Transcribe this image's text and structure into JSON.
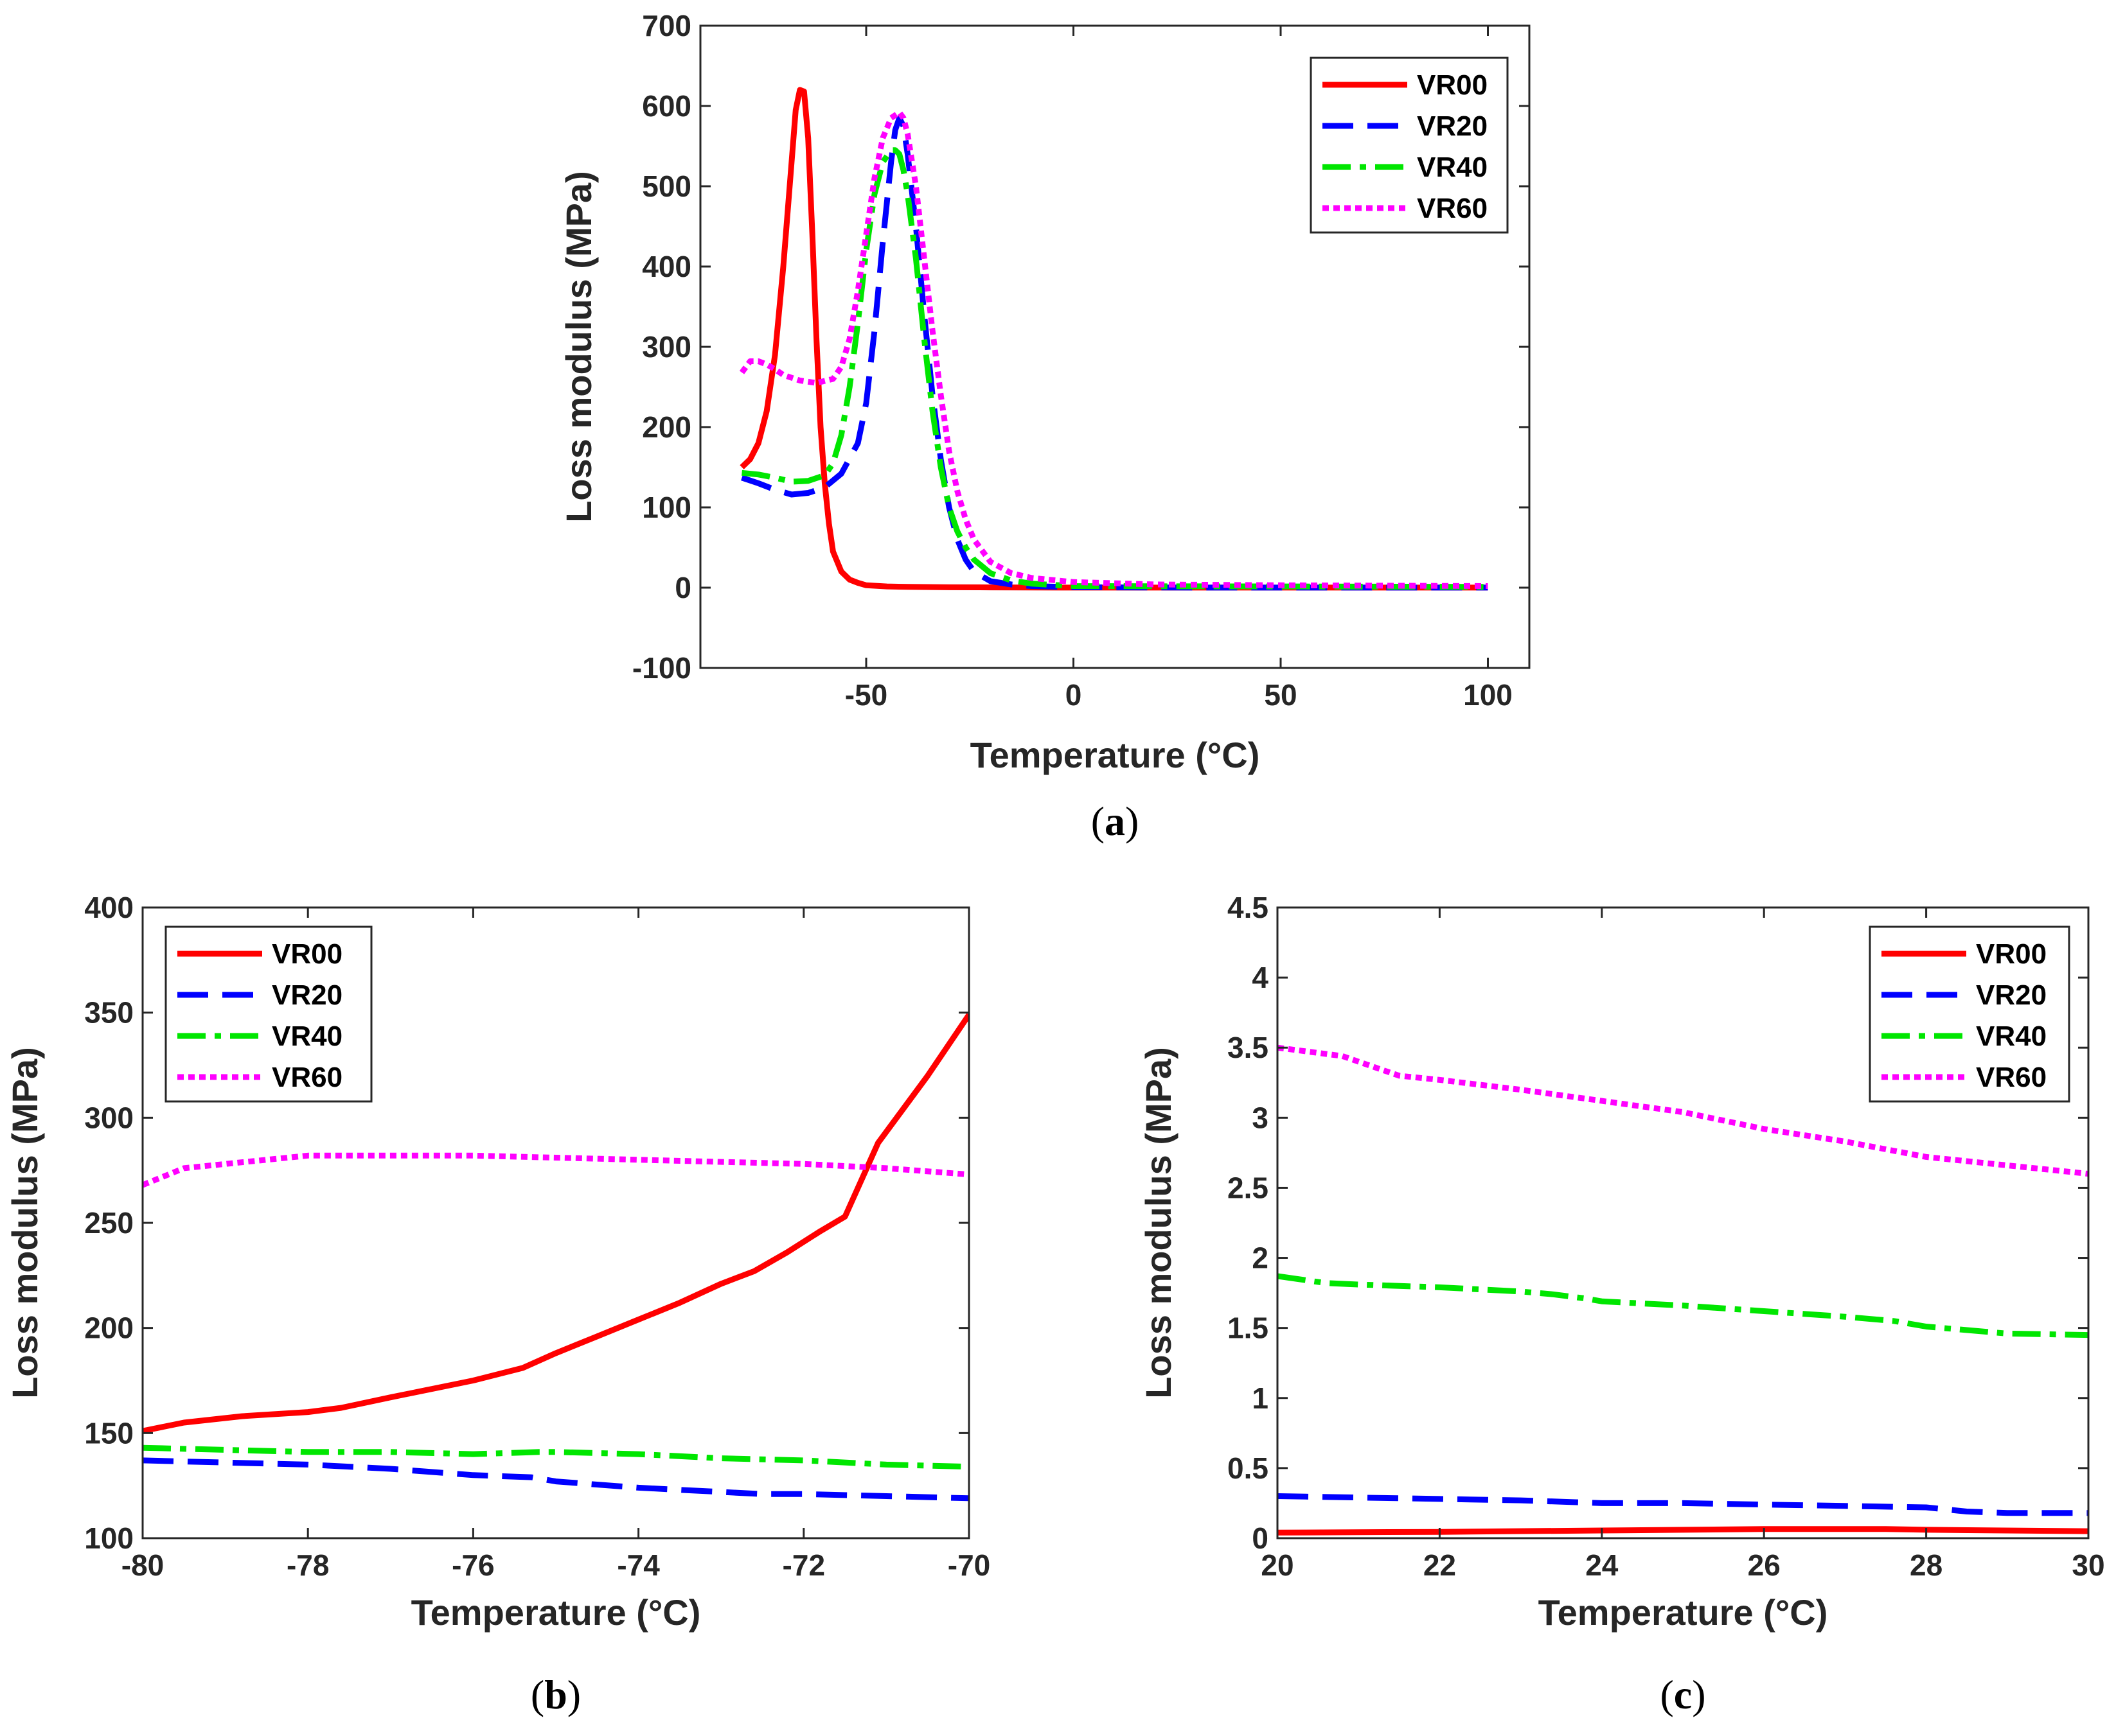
{
  "chart_data": [
    {
      "id": "a",
      "type": "line",
      "caption_letter": "a",
      "xlabel": "Temperature (°C)",
      "ylabel": "Loss modulus (MPa)",
      "xlim": [
        -90,
        110
      ],
      "ylim": [
        -100,
        700
      ],
      "xticks": [
        -50,
        0,
        50,
        100
      ],
      "yticks": [
        -100,
        0,
        100,
        200,
        300,
        400,
        500,
        600,
        700
      ],
      "xtick_labels": [
        "-50",
        "0",
        "50",
        "100"
      ],
      "ytick_labels": [
        "-100",
        "0",
        "100",
        "200",
        "300",
        "400",
        "500",
        "600",
        "700"
      ],
      "legend": "top-right",
      "series": [
        {
          "name": "VR00",
          "color": "#ff0000",
          "style": "solid",
          "x": [
            -80,
            -78,
            -76,
            -74,
            -72,
            -70,
            -68,
            -67,
            -66,
            -65,
            -64,
            -63,
            -62,
            -61,
            -60,
            -59,
            -58,
            -56,
            -54,
            -52,
            -50,
            -45,
            -40,
            -30,
            -20,
            0,
            20,
            50,
            100
          ],
          "y": [
            150,
            160,
            180,
            220,
            290,
            400,
            530,
            595,
            620,
            618,
            560,
            440,
            310,
            200,
            130,
            80,
            45,
            20,
            10,
            6,
            3,
            1.5,
            1,
            0.5,
            0.3,
            0.1,
            0.1,
            0.1,
            0.1
          ]
        },
        {
          "name": "VR20",
          "color": "#0000ff",
          "style": "dashed",
          "x": [
            -80,
            -76,
            -72,
            -68,
            -64,
            -60,
            -56,
            -52,
            -50,
            -48,
            -46,
            -44,
            -43,
            -42,
            -41,
            -40,
            -38,
            -36,
            -34,
            -32,
            -30,
            -28,
            -26,
            -24,
            -20,
            -15,
            -10,
            0,
            20,
            50,
            100
          ],
          "y": [
            137,
            130,
            122,
            116,
            118,
            125,
            142,
            180,
            230,
            320,
            430,
            530,
            570,
            585,
            575,
            540,
            450,
            340,
            240,
            160,
            100,
            60,
            35,
            20,
            8,
            4,
            2,
            0.5,
            0.2,
            0.1,
            0.1
          ]
        },
        {
          "name": "VR40",
          "color": "#00e600",
          "style": "dashdot",
          "x": [
            -80,
            -76,
            -72,
            -68,
            -64,
            -60,
            -58,
            -56,
            -54,
            -52,
            -50,
            -48,
            -46,
            -44,
            -43,
            -42,
            -41,
            -40,
            -38,
            -36,
            -34,
            -32,
            -30,
            -28,
            -26,
            -24,
            -20,
            -15,
            -10,
            0,
            20,
            50,
            100
          ],
          "y": [
            143,
            141,
            137,
            132,
            133,
            140,
            155,
            190,
            250,
            330,
            420,
            490,
            530,
            545,
            545,
            540,
            520,
            490,
            410,
            310,
            220,
            150,
            100,
            70,
            50,
            35,
            18,
            9,
            5,
            2,
            1.8,
            1.5,
            1.0
          ]
        },
        {
          "name": "VR60",
          "color": "#ff00ff",
          "style": "dotted",
          "x": [
            -80,
            -78,
            -76,
            -74,
            -72,
            -70,
            -66,
            -62,
            -58,
            -56,
            -54,
            -52,
            -50,
            -48,
            -46,
            -44,
            -42,
            -41,
            -40,
            -38,
            -36,
            -34,
            -32,
            -30,
            -28,
            -26,
            -24,
            -20,
            -15,
            -10,
            0,
            20,
            50,
            100
          ],
          "y": [
            268,
            282,
            282,
            278,
            272,
            265,
            258,
            255,
            260,
            275,
            310,
            370,
            440,
            510,
            560,
            585,
            592,
            585,
            565,
            500,
            410,
            320,
            240,
            170,
            120,
            85,
            60,
            32,
            18,
            12,
            7,
            4,
            3,
            2
          ]
        }
      ]
    },
    {
      "id": "b",
      "type": "line",
      "caption_letter": "b",
      "xlabel": "Temperature (°C)",
      "ylabel": "Loss modulus (MPa)",
      "xlim": [
        -80,
        -70
      ],
      "ylim": [
        100,
        400
      ],
      "xticks": [
        -80,
        -78,
        -76,
        -74,
        -72,
        -70
      ],
      "yticks": [
        100,
        150,
        200,
        250,
        300,
        350,
        400
      ],
      "xtick_labels": [
        "-80",
        "-78",
        "-76",
        "-74",
        "-72",
        "-70"
      ],
      "ytick_labels": [
        "100",
        "150",
        "200",
        "250",
        "300",
        "350",
        "400"
      ],
      "legend": "top-left",
      "series": [
        {
          "name": "VR00",
          "color": "#ff0000",
          "style": "solid",
          "x": [
            -80,
            -79.5,
            -78.8,
            -78,
            -77.6,
            -77,
            -76.5,
            -76,
            -75.4,
            -75,
            -74.5,
            -74,
            -73.5,
            -73,
            -72.6,
            -72.2,
            -71.8,
            -71.5,
            -71.1,
            -70.5,
            -70
          ],
          "y": [
            151,
            155,
            158,
            160,
            162,
            167,
            171,
            175,
            181,
            188,
            196,
            204,
            212,
            221,
            227,
            236,
            246,
            253,
            288,
            320,
            349
          ]
        },
        {
          "name": "VR20",
          "color": "#0000ff",
          "style": "dashed",
          "x": [
            -80,
            -79,
            -78,
            -77,
            -76,
            -75.3,
            -75,
            -74,
            -73,
            -72.5,
            -72,
            -71,
            -70
          ],
          "y": [
            137,
            136,
            135,
            133,
            130,
            129,
            127,
            124,
            122,
            121,
            121,
            120,
            119
          ]
        },
        {
          "name": "VR40",
          "color": "#00e600",
          "style": "dashdot",
          "x": [
            -80,
            -79,
            -78,
            -77,
            -76,
            -75.2,
            -75,
            -74,
            -73,
            -72,
            -71,
            -70
          ],
          "y": [
            143,
            142,
            141,
            141,
            140,
            141,
            141,
            140,
            138,
            137,
            135,
            134
          ]
        },
        {
          "name": "VR60",
          "color": "#ff00ff",
          "style": "dotted",
          "x": [
            -80,
            -79.5,
            -79,
            -78.5,
            -78,
            -77,
            -76,
            -75,
            -74,
            -73,
            -72,
            -71,
            -70
          ],
          "y": [
            268,
            276,
            278,
            280,
            282,
            282,
            282,
            281,
            280,
            279,
            278,
            276,
            273
          ]
        }
      ]
    },
    {
      "id": "c",
      "type": "line",
      "caption_letter": "c",
      "xlabel": "Temperature (°C)",
      "ylabel": "Loss modulus (MPa)",
      "xlim": [
        20,
        30
      ],
      "ylim": [
        0,
        4.5
      ],
      "xticks": [
        20,
        22,
        24,
        26,
        28,
        30
      ],
      "yticks": [
        0,
        0.5,
        1,
        1.5,
        2,
        2.5,
        3,
        3.5,
        4,
        4.5
      ],
      "xtick_labels": [
        "20",
        "22",
        "24",
        "26",
        "28",
        "30"
      ],
      "ytick_labels": [
        "0",
        "0.5",
        "1",
        "1.5",
        "2",
        "2.5",
        "3",
        "3.5",
        "4",
        "4.5"
      ],
      "legend": "top-right",
      "series": [
        {
          "name": "VR00",
          "color": "#ff0000",
          "style": "solid",
          "x": [
            20,
            22,
            24,
            26,
            27.5,
            28,
            30
          ],
          "y": [
            0.04,
            0.045,
            0.055,
            0.065,
            0.065,
            0.06,
            0.05
          ]
        },
        {
          "name": "VR20",
          "color": "#0000ff",
          "style": "dashed",
          "x": [
            20,
            21,
            22,
            23,
            24,
            25,
            26,
            27,
            28,
            28.5,
            29,
            30
          ],
          "y": [
            0.3,
            0.29,
            0.28,
            0.27,
            0.25,
            0.25,
            0.24,
            0.23,
            0.22,
            0.19,
            0.18,
            0.18
          ]
        },
        {
          "name": "VR40",
          "color": "#00e600",
          "style": "dashdot",
          "x": [
            20,
            20.6,
            21,
            22,
            23,
            23.4,
            23.8,
            24,
            25,
            26,
            27,
            27.6,
            28,
            29,
            30
          ],
          "y": [
            1.87,
            1.82,
            1.81,
            1.79,
            1.76,
            1.74,
            1.71,
            1.69,
            1.66,
            1.62,
            1.58,
            1.55,
            1.51,
            1.46,
            1.45
          ]
        },
        {
          "name": "VR60",
          "color": "#ff00ff",
          "style": "dotted",
          "x": [
            20,
            20.8,
            21.5,
            22,
            23,
            24,
            25,
            26,
            27,
            28,
            29,
            30
          ],
          "y": [
            3.5,
            3.44,
            3.3,
            3.27,
            3.2,
            3.12,
            3.04,
            2.92,
            2.83,
            2.72,
            2.66,
            2.6
          ]
        }
      ]
    }
  ]
}
